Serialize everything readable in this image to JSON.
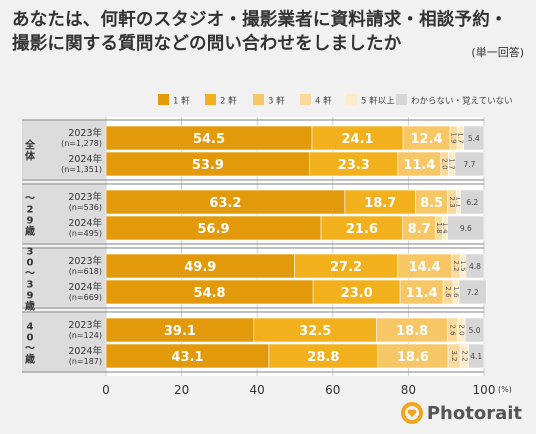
{
  "title_line1": "あなたは、何軒のスタジオ・撮影業者に資料請求・相談予約・",
  "title_line2": "撮影に関する質問などの問い合わせをしましたか",
  "note": "(単一回答)",
  "brand": "Photorait",
  "chart_data": {
    "type": "bar",
    "orientation": "horizontal",
    "stacked": true,
    "xlim": [
      0,
      100
    ],
    "x_ticks": [
      "0",
      "20",
      "40",
      "60",
      "80",
      "100"
    ],
    "x_unit": "(%)",
    "legend_position": "top",
    "series": [
      {
        "name": "1 軒",
        "color": "#e39a0a"
      },
      {
        "name": "2 軒",
        "color": "#f2b11c"
      },
      {
        "name": "3 軒",
        "color": "#f7c766"
      },
      {
        "name": "4 軒",
        "color": "#f9da9b"
      },
      {
        "name": "5 軒以上",
        "color": "#fcecc7"
      },
      {
        "name": "わからない・覚えていない",
        "color": "#d6d6d6"
      }
    ],
    "groups": [
      {
        "label": "全体",
        "rows": [
          {
            "year": "2023年",
            "n": "(n=1,278)",
            "values": [
              54.5,
              24.1,
              12.4,
              1.9,
              1.7,
              5.4
            ],
            "labels": [
              "54.5",
              "24.1",
              "12.4",
              "1.9",
              "1.7",
              "5.4"
            ]
          },
          {
            "year": "2024年",
            "n": "(n=1,351)",
            "values": [
              53.9,
              23.3,
              11.4,
              2.0,
              1.7,
              7.7
            ],
            "labels": [
              "53.9",
              "23.3",
              "11.4",
              "2.0",
              "1.7",
              "7.7"
            ]
          }
        ]
      },
      {
        "label": "〜29歳",
        "rows": [
          {
            "year": "2023年",
            "n": "(n=536)",
            "values": [
              63.2,
              18.7,
              8.5,
              2.3,
              1.1,
              6.2
            ],
            "labels": [
              "63.2",
              "18.7",
              "8.5",
              "2.3",
              "1.1",
              "6.2"
            ]
          },
          {
            "year": "2024年",
            "n": "(n=495)",
            "values": [
              56.9,
              21.6,
              8.7,
              1.8,
              1.4,
              9.6
            ],
            "labels": [
              "56.9",
              "21.6",
              "8.7",
              "1.8",
              "1.4",
              "9.6"
            ]
          }
        ]
      },
      {
        "label": "30〜39歳",
        "rows": [
          {
            "year": "2023年",
            "n": "(n=618)",
            "values": [
              49.9,
              27.2,
              14.4,
              2.2,
              1.5,
              4.8
            ],
            "labels": [
              "49.9",
              "27.2",
              "14.4",
              "2.2",
              "1.5",
              "4.8"
            ]
          },
          {
            "year": "2024年",
            "n": "(n=669)",
            "values": [
              54.8,
              23.0,
              11.4,
              2.6,
              1.6,
              7.2
            ],
            "labels": [
              "54.8",
              "23.0",
              "11.4",
              "2.6",
              "1.6",
              "7.2"
            ]
          }
        ]
      },
      {
        "label": "40〜歳",
        "rows": [
          {
            "year": "2023年",
            "n": "(n=124)",
            "values": [
              39.1,
              32.5,
              18.8,
              2.6,
              2.0,
              5.0
            ],
            "labels": [
              "39.1",
              "32.5",
              "18.8",
              "2.6",
              "2.0",
              "5.0"
            ]
          },
          {
            "year": "2024年",
            "n": "(n=187)",
            "values": [
              43.1,
              28.8,
              18.6,
              3.2,
              2.2,
              4.1
            ],
            "labels": [
              "43.1",
              "28.8",
              "18.6",
              "3.2",
              "2.2",
              "4.1"
            ]
          }
        ]
      }
    ]
  }
}
